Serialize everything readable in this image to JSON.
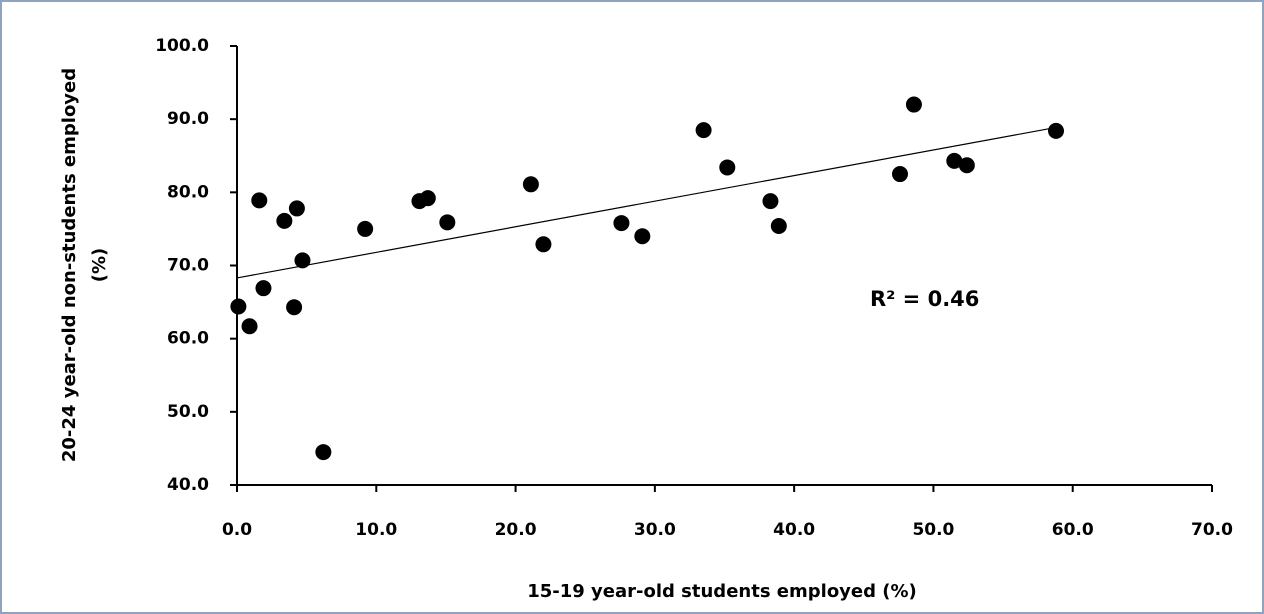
{
  "chart_data": {
    "type": "scatter",
    "xlabel": "15-19 year-old students employed (%)",
    "ylabel": [
      "20-24 year-old non-students employed",
      "(%)"
    ],
    "annotation": "R² = 0.46",
    "color": "#000000",
    "x": [
      0.1,
      0.9,
      1.6,
      1.9,
      3.4,
      4.3,
      4.1,
      4.7,
      6.2,
      9.2,
      13.1,
      13.7,
      15.1,
      21.1,
      22.0,
      27.6,
      29.1,
      33.5,
      35.2,
      38.3,
      38.9,
      47.6,
      48.6,
      51.5,
      52.4,
      58.8
    ],
    "values": [
      64.4,
      61.7,
      78.9,
      66.9,
      76.1,
      77.8,
      64.3,
      70.7,
      44.5,
      75.0,
      78.8,
      79.2,
      75.9,
      81.1,
      72.9,
      75.8,
      74.0,
      88.5,
      83.4,
      78.8,
      75.4,
      82.5,
      92.0,
      84.3,
      83.7,
      88.4
    ],
    "trendline": {
      "x": [
        0,
        58.9
      ],
      "values": [
        68.3,
        88.9
      ]
    },
    "xlim": [
      0,
      70
    ],
    "ylim": [
      40,
      100
    ],
    "xticks": [
      {
        "value": 0,
        "label": "0.0"
      },
      {
        "value": 10,
        "label": "10.0"
      },
      {
        "value": 20,
        "label": "20.0"
      },
      {
        "value": 30,
        "label": "30.0"
      },
      {
        "value": 40,
        "label": "40.0"
      },
      {
        "value": 50,
        "label": "50.0"
      },
      {
        "value": 60,
        "label": "60.0"
      },
      {
        "value": 70,
        "label": "70.0"
      }
    ],
    "yticks": [
      {
        "value": 40,
        "label": "40.0"
      },
      {
        "value": 50,
        "label": "50.0"
      },
      {
        "value": 60,
        "label": "60.0"
      },
      {
        "value": 70,
        "label": "70.0"
      },
      {
        "value": 80,
        "label": "80.0"
      },
      {
        "value": 90,
        "label": "90.0"
      },
      {
        "value": 100,
        "label": "100.0"
      }
    ]
  }
}
